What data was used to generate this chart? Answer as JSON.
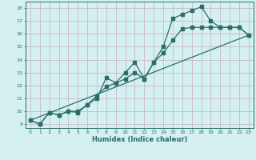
{
  "title": "",
  "xlabel": "Humidex (Indice chaleur)",
  "ylabel": "",
  "bg_color": "#d4f0f0",
  "grid_color": "#c8b8c8",
  "line_color": "#2a6e68",
  "xlim": [
    -0.5,
    23.5
  ],
  "ylim": [
    8.7,
    18.5
  ],
  "xticks": [
    0,
    1,
    2,
    3,
    4,
    5,
    6,
    7,
    8,
    9,
    10,
    11,
    12,
    13,
    14,
    15,
    16,
    17,
    18,
    19,
    20,
    21,
    22,
    23
  ],
  "yticks": [
    9,
    10,
    11,
    12,
    13,
    14,
    15,
    16,
    17,
    18
  ],
  "line1_x": [
    0,
    1,
    2,
    3,
    4,
    5,
    6,
    7,
    8,
    9,
    10,
    11,
    12,
    13,
    14,
    15,
    16,
    17,
    18,
    19,
    20,
    21,
    22,
    23
  ],
  "line1_y": [
    9.3,
    9.0,
    9.9,
    9.7,
    10.0,
    10.0,
    10.5,
    11.0,
    12.6,
    12.2,
    13.0,
    13.8,
    12.5,
    13.8,
    15.0,
    17.2,
    17.5,
    17.8,
    18.1,
    17.0,
    16.5,
    16.5,
    16.5,
    15.9
  ],
  "line2_x": [
    0,
    1,
    2,
    3,
    4,
    5,
    6,
    7,
    8,
    9,
    10,
    11,
    12,
    13,
    14,
    15,
    16,
    17,
    18,
    19,
    20,
    21,
    22,
    23
  ],
  "line2_y": [
    9.3,
    9.0,
    9.9,
    9.7,
    10.0,
    9.9,
    10.5,
    11.2,
    11.9,
    12.2,
    12.5,
    13.0,
    12.5,
    13.8,
    14.5,
    15.5,
    16.4,
    16.5,
    16.5,
    16.5,
    16.5,
    16.5,
    16.5,
    15.9
  ],
  "line3_x": [
    0,
    23
  ],
  "line3_y": [
    9.3,
    15.9
  ],
  "marker_size": 2.5,
  "linewidth": 0.9
}
